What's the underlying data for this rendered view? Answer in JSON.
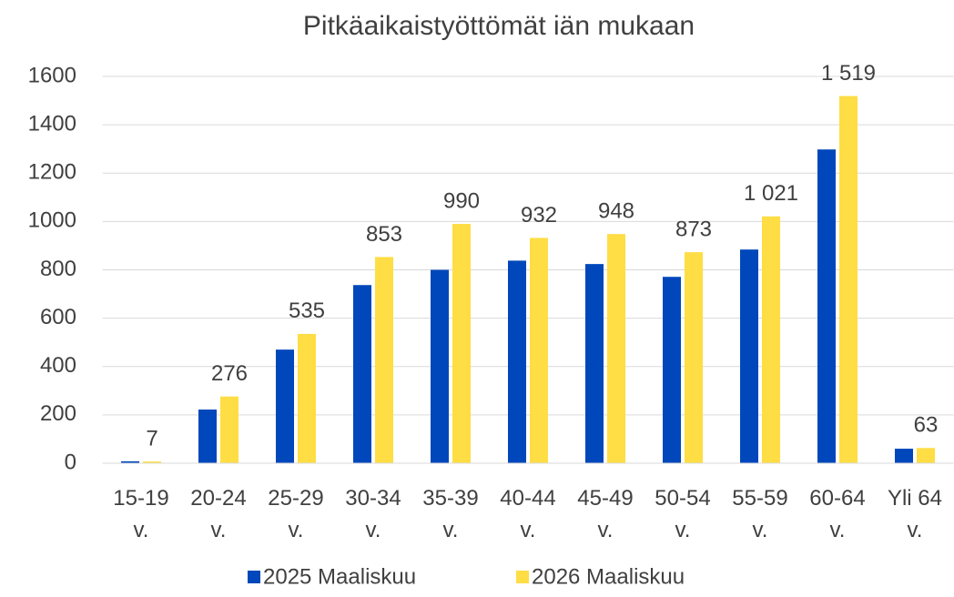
{
  "chart_data": {
    "type": "bar",
    "title": "Pitkäaikaistyöttömät iän mukaan",
    "categories": [
      "15-19 v.",
      "20-24 v.",
      "25-29 v.",
      "30-34 v.",
      "35-39 v.",
      "40-44 v.",
      "45-49 v.",
      "50-54 v.",
      "55-59 v.",
      "60-64 v.",
      "Yli 64 v."
    ],
    "series": [
      {
        "name": "2025 Maaliskuu",
        "color": "#0047bb",
        "values": [
          8,
          222,
          470,
          737,
          800,
          838,
          824,
          771,
          884,
          1298,
          60
        ]
      },
      {
        "name": "2026 Maaliskuu",
        "color": "#ffdd44",
        "values": [
          7,
          276,
          535,
          853,
          990,
          932,
          948,
          873,
          1021,
          1519,
          63
        ],
        "value_labels": [
          "7",
          "276",
          "535",
          "853",
          "990",
          "932",
          "948",
          "873",
          "1 021",
          "1 519",
          "63"
        ]
      }
    ],
    "ylim": [
      0,
      1600
    ],
    "yticks": [
      0,
      200,
      400,
      600,
      800,
      1000,
      1200,
      1400,
      1600
    ],
    "grid": true,
    "legend": "bottom"
  }
}
